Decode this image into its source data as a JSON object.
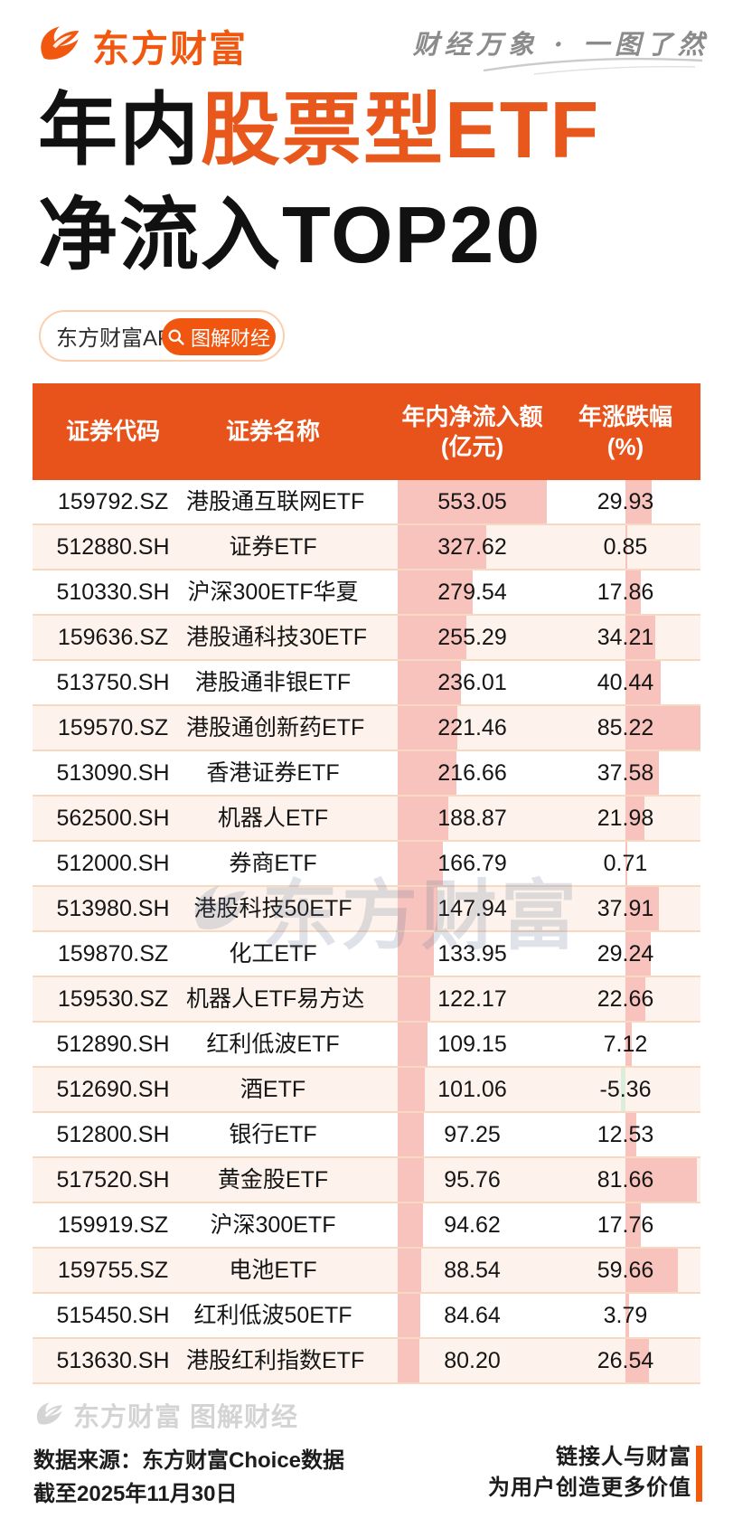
{
  "brand": {
    "logo_text": "东方财富",
    "tagline": "财经万象 · 一图了然"
  },
  "title": {
    "line1_black": "年内",
    "line1_orange": "股票型ETF",
    "line2": "净流入TOP20"
  },
  "promo": {
    "app_label": "东方财富APP",
    "button_label": "图解财经"
  },
  "table": {
    "columns": [
      {
        "label": "证券代码",
        "sub": ""
      },
      {
        "label": "证券名称",
        "sub": ""
      },
      {
        "label": "年内净流入额",
        "sub": "(亿元)"
      },
      {
        "label": "年涨跌幅",
        "sub": "(%)"
      }
    ],
    "rows": [
      {
        "code": "159792.SZ",
        "name": "港股通互联网ETF",
        "inflow": 553.05,
        "pct": 29.93
      },
      {
        "code": "512880.SH",
        "name": "证券ETF",
        "inflow": 327.62,
        "pct": 0.85
      },
      {
        "code": "510330.SH",
        "name": "沪深300ETF华夏",
        "inflow": 279.54,
        "pct": 17.86
      },
      {
        "code": "159636.SZ",
        "name": "港股通科技30ETF",
        "inflow": 255.29,
        "pct": 34.21
      },
      {
        "code": "513750.SH",
        "name": "港股通非银ETF",
        "inflow": 236.01,
        "pct": 40.44
      },
      {
        "code": "159570.SZ",
        "name": "港股通创新药ETF",
        "inflow": 221.46,
        "pct": 85.22
      },
      {
        "code": "513090.SH",
        "name": "香港证券ETF",
        "inflow": 216.66,
        "pct": 37.58
      },
      {
        "code": "562500.SH",
        "name": "机器人ETF",
        "inflow": 188.87,
        "pct": 21.98
      },
      {
        "code": "512000.SH",
        "name": "券商ETF",
        "inflow": 166.79,
        "pct": 0.71
      },
      {
        "code": "513980.SH",
        "name": "港股科技50ETF",
        "inflow": 147.94,
        "pct": 37.91
      },
      {
        "code": "159870.SZ",
        "name": "化工ETF",
        "inflow": 133.95,
        "pct": 29.24
      },
      {
        "code": "159530.SZ",
        "name": "机器人ETF易方达",
        "inflow": 122.17,
        "pct": 22.66
      },
      {
        "code": "512890.SH",
        "name": "红利低波ETF",
        "inflow": 109.15,
        "pct": 7.12
      },
      {
        "code": "512690.SH",
        "name": "酒ETF",
        "inflow": 101.06,
        "pct": -5.36
      },
      {
        "code": "512800.SH",
        "name": "银行ETF",
        "inflow": 97.25,
        "pct": 12.53
      },
      {
        "code": "517520.SH",
        "name": "黄金股ETF",
        "inflow": 95.76,
        "pct": 81.66
      },
      {
        "code": "159919.SZ",
        "name": "沪深300ETF",
        "inflow": 94.62,
        "pct": 17.76
      },
      {
        "code": "159755.SZ",
        "name": "电池ETF",
        "inflow": 88.54,
        "pct": 59.66
      },
      {
        "code": "515450.SH",
        "name": "红利低波50ETF",
        "inflow": 84.64,
        "pct": 3.79
      },
      {
        "code": "513630.SH",
        "name": "港股红利指数ETF",
        "inflow": 80.2,
        "pct": 26.54
      }
    ]
  },
  "chart_data": {
    "type": "bar",
    "title": "年内股票型ETF净流入TOP20",
    "categories": [
      "港股通互联网ETF",
      "证券ETF",
      "沪深300ETF华夏",
      "港股通科技30ETF",
      "港股通非银ETF",
      "港股通创新药ETF",
      "香港证券ETF",
      "机器人ETF",
      "券商ETF",
      "港股科技50ETF",
      "化工ETF",
      "机器人ETF易方达",
      "红利低波ETF",
      "酒ETF",
      "银行ETF",
      "黄金股ETF",
      "沪深300ETF",
      "电池ETF",
      "红利低波50ETF",
      "港股红利指数ETF"
    ],
    "series": [
      {
        "name": "年内净流入额(亿元)",
        "values": [
          553.05,
          327.62,
          279.54,
          255.29,
          236.01,
          221.46,
          216.66,
          188.87,
          166.79,
          147.94,
          133.95,
          122.17,
          109.15,
          101.06,
          97.25,
          95.76,
          94.62,
          88.54,
          84.64,
          80.2
        ]
      },
      {
        "name": "年涨跌幅(%)",
        "values": [
          29.93,
          0.85,
          17.86,
          34.21,
          40.44,
          85.22,
          37.58,
          21.98,
          0.71,
          37.91,
          29.24,
          22.66,
          7.12,
          -5.36,
          12.53,
          81.66,
          17.76,
          59.66,
          3.79,
          26.54
        ]
      }
    ],
    "xlabel": "证券名称",
    "ylabel": "年内净流入额(亿元) / 年涨跌幅(%)",
    "legend_position": "none",
    "grid": false
  },
  "watermarks": {
    "center": "东方财富",
    "footer": "东方财富 图解财经"
  },
  "footer": {
    "source_line1": "数据来源：东方财富Choice数据",
    "source_line2": "截至2025年11月30日",
    "slogan_line1": "链接人与财富",
    "slogan_line2": "为用户创造更多价值"
  },
  "colors": {
    "brand_orange": "#f1570f",
    "header_orange": "#e7531b",
    "title_orange": "#e8571b",
    "bar_pink": "#f8c3bd",
    "bar_negative_green": "#daeeda",
    "row_alt": "#fdf3ec",
    "slogan_bar_orange": "#f35a0b"
  }
}
